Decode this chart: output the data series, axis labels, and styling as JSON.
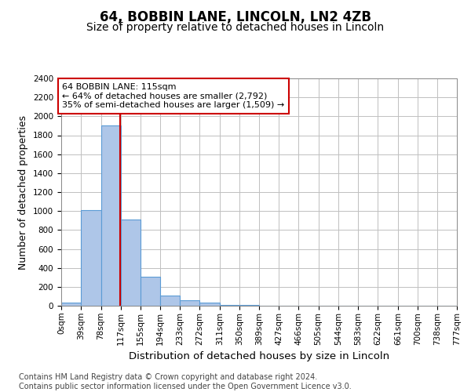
{
  "title1": "64, BOBBIN LANE, LINCOLN, LN2 4ZB",
  "title2": "Size of property relative to detached houses in Lincoln",
  "xlabel": "Distribution of detached houses by size in Lincoln",
  "ylabel": "Number of detached properties",
  "bar_edges": [
    0,
    39,
    78,
    117,
    155,
    194,
    233,
    272,
    311,
    350,
    389,
    427,
    466,
    505,
    544,
    583,
    622,
    661,
    700,
    738,
    777
  ],
  "bar_heights": [
    30,
    1010,
    1900,
    910,
    305,
    110,
    55,
    30,
    10,
    5,
    3,
    2,
    1,
    1,
    1,
    1,
    1,
    0,
    1,
    0
  ],
  "bar_facecolor": "#aec6e8",
  "bar_edgecolor": "#5b9bd5",
  "bar_linewidth": 0.8,
  "vline_x": 115,
  "vline_color": "#cc0000",
  "vline_linewidth": 1.5,
  "annotation_text": "64 BOBBIN LANE: 115sqm\n← 64% of detached houses are smaller (2,792)\n35% of semi-detached houses are larger (1,509) →",
  "annotation_box_edgecolor": "#cc0000",
  "annotation_box_facecolor": "white",
  "ylim": [
    0,
    2400
  ],
  "yticks": [
    0,
    200,
    400,
    600,
    800,
    1000,
    1200,
    1400,
    1600,
    1800,
    2000,
    2200,
    2400
  ],
  "tick_labels": [
    "0sqm",
    "39sqm",
    "78sqm",
    "117sqm",
    "155sqm",
    "194sqm",
    "233sqm",
    "272sqm",
    "311sqm",
    "350sqm",
    "389sqm",
    "427sqm",
    "466sqm",
    "505sqm",
    "544sqm",
    "583sqm",
    "622sqm",
    "661sqm",
    "700sqm",
    "738sqm",
    "777sqm"
  ],
  "footer_text": "Contains HM Land Registry data © Crown copyright and database right 2024.\nContains public sector information licensed under the Open Government Licence v3.0.",
  "background_color": "#ffffff",
  "grid_color": "#c0c0c0",
  "title1_fontsize": 12,
  "title2_fontsize": 10,
  "xlabel_fontsize": 9.5,
  "ylabel_fontsize": 9,
  "tick_fontsize": 7.5,
  "footer_fontsize": 7
}
